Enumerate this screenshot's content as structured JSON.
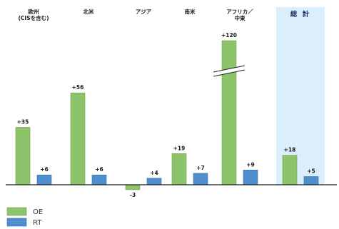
{
  "chart_data": {
    "type": "bar",
    "categories": [
      {
        "lines": [
          "欧州",
          "(CISを含む)"
        ]
      },
      {
        "lines": [
          "北米"
        ]
      },
      {
        "lines": [
          "アジア"
        ]
      },
      {
        "lines": [
          "南米"
        ]
      },
      {
        "lines": [
          "アフリカ／",
          "中東"
        ]
      },
      {
        "lines": [
          "総 計"
        ],
        "highlight": true
      }
    ],
    "series": [
      {
        "name": "OE",
        "color": "#8dc36a",
        "values": [
          35,
          56,
          -3,
          19,
          120,
          18
        ],
        "labels": [
          "+35",
          "+56",
          "-3",
          "+19",
          "+120",
          "+18"
        ]
      },
      {
        "name": "RT",
        "color": "#4f8fcf",
        "values": [
          6,
          6,
          4,
          7,
          9,
          5
        ],
        "labels": [
          "+6",
          "+6",
          "+4",
          "+7",
          "+9",
          "+5"
        ]
      }
    ],
    "axis_break": {
      "category_index": 4,
      "series_index": 0
    },
    "highlight_color": "#dbeefc",
    "grid": false,
    "legend_position": "bottom-left"
  }
}
